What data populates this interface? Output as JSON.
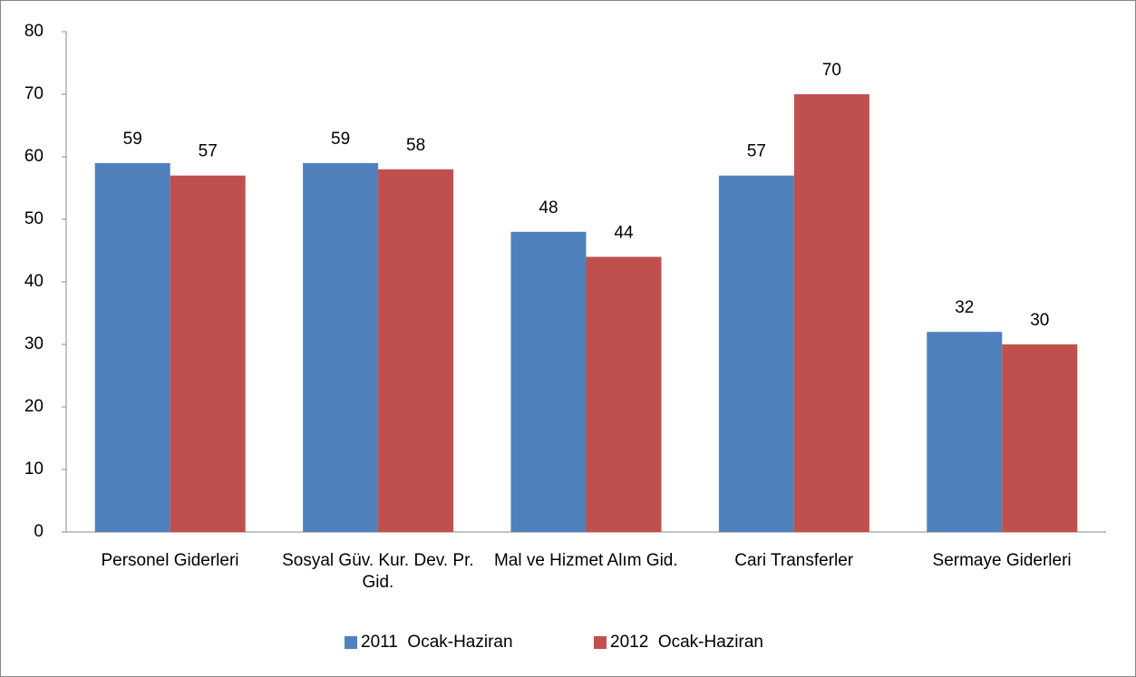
{
  "chart_data": {
    "type": "bar",
    "categories": [
      "Personel Giderleri",
      "Sosyal Güv. Kur. Dev. Pr. Gid.",
      "Mal ve Hizmet Alım Gid.",
      "Cari Transferler",
      "Sermaye Giderleri"
    ],
    "series": [
      {
        "name": "2011  Ocak-Haziran",
        "color": "#4f81bd",
        "values": [
          59,
          59,
          48,
          57,
          32
        ]
      },
      {
        "name": "2012  Ocak-Haziran",
        "color": "#c0504d",
        "values": [
          57,
          58,
          44,
          70,
          30
        ]
      }
    ],
    "ylim": [
      0,
      80
    ],
    "yticks": [
      0,
      10,
      20,
      30,
      40,
      50,
      60,
      70,
      80
    ],
    "legend": "bottom",
    "grid": false
  }
}
